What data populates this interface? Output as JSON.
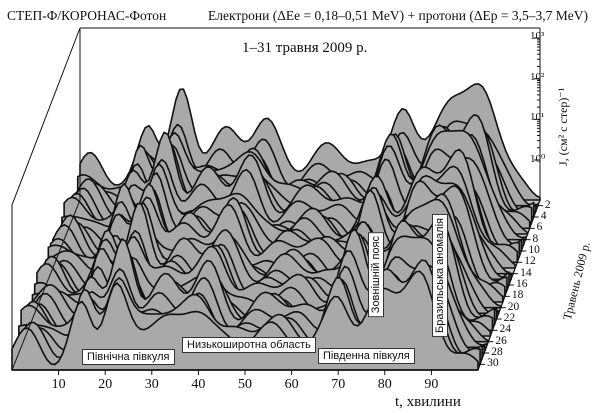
{
  "header": {
    "instrument": "СТЕП-Ф/КОРОНАС-Фотон",
    "particles": "Електрони (ΔEe = 0,18–0,51 MeV) + протони (ΔEp = 3,5–3,7 MeV)"
  },
  "period": "1–31 травня 2009 р.",
  "zones": {
    "north": "Північна півкуля",
    "lowlat": "Низькоширотна область",
    "south": "Південна півкуля",
    "outer_belt": "Зовнішній пояс",
    "saa": "Бразильська аномалія"
  },
  "chart_data": {
    "type": "area",
    "style": "3D waterfall",
    "xlabel": "t, хвилини",
    "x_ticks": [
      10,
      20,
      30,
      40,
      50,
      60,
      70,
      80,
      90
    ],
    "xlim": [
      0,
      100
    ],
    "ylabel": "Травень 2009 р.",
    "day_ticks": [
      2,
      4,
      6,
      8,
      10,
      12,
      14,
      16,
      18,
      20,
      22,
      24,
      26,
      28,
      30
    ],
    "zlabel": "J, (см² с стер)⁻¹",
    "z_ticks": [
      "10⁰",
      "10¹",
      "10²",
      "10³"
    ],
    "z_scale": "log",
    "colors": {
      "fill": "#a9a9a9",
      "edge": "#111111",
      "floor": "#c6c6c6"
    }
  }
}
